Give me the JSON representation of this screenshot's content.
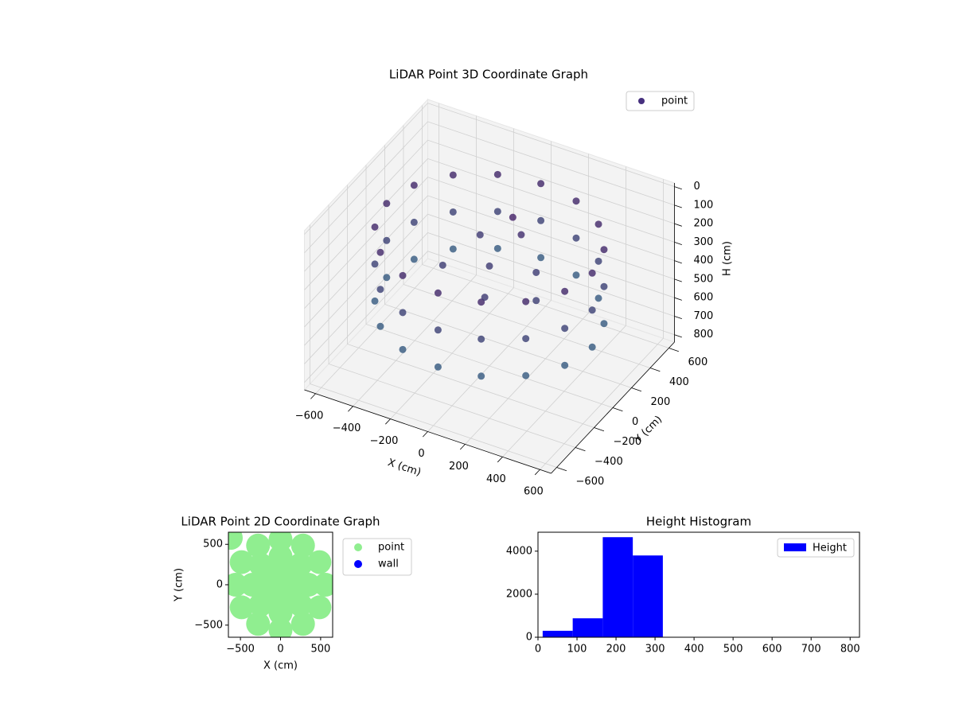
{
  "chart_data": [
    {
      "type": "scatter3d",
      "title": "LiDAR Point 3D Coordinate Graph",
      "xlabel": "X (cm)",
      "ylabel": "Y (cm)",
      "zlabel": "H (cm)",
      "xlim": [
        -660,
        660
      ],
      "ylim": [
        -660,
        660
      ],
      "zlim": [
        840,
        -20
      ],
      "xticks": [
        {
          "value": -600,
          "label": "−600"
        },
        {
          "value": -400,
          "label": "−400"
        },
        {
          "value": -200,
          "label": "−200"
        },
        0,
        200,
        400,
        600
      ],
      "yticks": [
        {
          "value": -600,
          "label": "−600"
        },
        {
          "value": -400,
          "label": "−400"
        },
        {
          "value": -200,
          "label": "−200"
        },
        0,
        200,
        400,
        600
      ],
      "zticks": [
        0,
        100,
        200,
        300,
        400,
        500,
        600,
        700,
        800
      ],
      "legend": "upper right",
      "series": [
        {
          "name": "point",
          "color": "#46307e",
          "colormap": [
            "#46105f",
            "#2a7b8e"
          ],
          "x": [
            550,
            508,
            389,
            210,
            0,
            -210,
            -389,
            -508,
            -550,
            -508,
            -389,
            -210,
            0,
            210,
            389,
            508,
            550,
            508,
            389,
            210,
            0,
            -210,
            -389,
            -508,
            -550,
            -508,
            -389,
            -210,
            0,
            210,
            389,
            508,
            550,
            508,
            389,
            210,
            0,
            -210,
            -389,
            -508,
            -550,
            -508,
            -389,
            -210,
            0,
            210,
            389,
            508,
            0,
            200,
            -200,
            100,
            -150,
            300,
            50,
            80
          ],
          "y": [
            0,
            210,
            389,
            508,
            550,
            508,
            389,
            210,
            0,
            -210,
            -389,
            -508,
            -550,
            -508,
            -389,
            -210,
            0,
            210,
            389,
            508,
            550,
            508,
            389,
            210,
            0,
            -210,
            -389,
            -508,
            -550,
            -508,
            -389,
            -210,
            0,
            210,
            389,
            508,
            550,
            508,
            389,
            210,
            0,
            -210,
            -389,
            -508,
            -550,
            -508,
            -389,
            -210,
            0,
            100,
            -100,
            -250,
            200,
            -100,
            150,
            180
          ],
          "z": [
            150,
            150,
            150,
            150,
            150,
            150,
            150,
            150,
            150,
            150,
            150,
            150,
            150,
            150,
            150,
            150,
            350,
            350,
            350,
            350,
            350,
            350,
            350,
            350,
            350,
            350,
            350,
            350,
            350,
            350,
            350,
            350,
            550,
            550,
            550,
            550,
            550,
            550,
            550,
            550,
            550,
            550,
            550,
            550,
            550,
            550,
            550,
            550,
            300,
            320,
            310,
            300,
            290,
            330,
            100,
            200
          ]
        }
      ]
    },
    {
      "type": "scatter",
      "title": "LiDAR Point 2D Coordinate Graph",
      "xlabel": "X (cm)",
      "ylabel": "Y (cm)",
      "xlim": [
        -650,
        650
      ],
      "ylim": [
        -650,
        650
      ],
      "xticks": [
        {
          "value": -500,
          "label": "−500"
        },
        0,
        500
      ],
      "yticks": [
        {
          "value": -500,
          "label": "−500"
        },
        0,
        500
      ],
      "legend": "outside upper right",
      "series": [
        {
          "name": "point",
          "color": "#90ee90",
          "x": [
            560,
            485,
            280,
            0,
            -280,
            -485,
            -560,
            -485,
            -280,
            0,
            280,
            485,
            350,
            247,
            0,
            -247,
            -350,
            -247,
            0,
            247,
            150,
            0,
            -150,
            0,
            0,
            -620
          ],
          "y": [
            0,
            280,
            485,
            560,
            485,
            280,
            0,
            -280,
            -485,
            -560,
            -485,
            -280,
            0,
            247,
            350,
            247,
            0,
            -247,
            -350,
            -247,
            0,
            150,
            0,
            -150,
            0,
            580
          ]
        },
        {
          "name": "wall",
          "color": "#0000ff",
          "x": [],
          "y": []
        }
      ]
    },
    {
      "type": "histogram",
      "title": "Height Histogram",
      "name": "Height",
      "color": "#0000ff",
      "bins": [
        12,
        89,
        166,
        243,
        320,
        397,
        474,
        551,
        628,
        705,
        782
      ],
      "counts": [
        300,
        880,
        4650,
        3800,
        0,
        0,
        0,
        0,
        0,
        3
      ],
      "xlim": [
        0,
        824
      ],
      "ylim": [
        0,
        4880
      ],
      "xticks": [
        0,
        100,
        200,
        300,
        400,
        500,
        600,
        700,
        800
      ],
      "yticks": [
        0,
        2000,
        4000
      ],
      "legend": "upper right"
    }
  ]
}
